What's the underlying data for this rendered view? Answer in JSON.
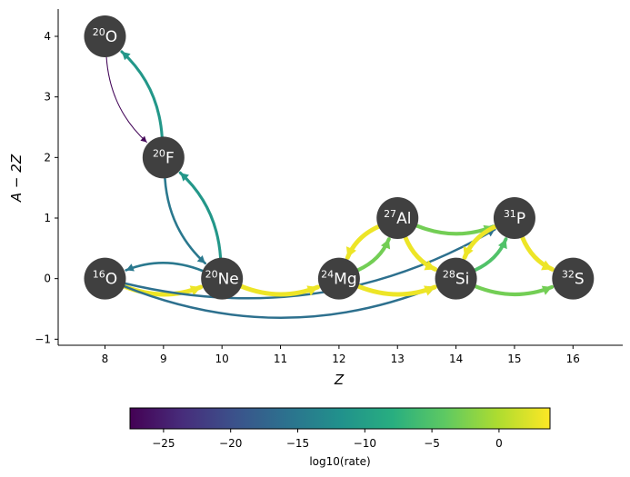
{
  "chart_data": {
    "type": "network",
    "xlabel": "Z",
    "ylabel": "A − 2Z",
    "xlim": [
      7.2,
      16.85
    ],
    "ylim": [
      -1.1,
      4.45
    ],
    "xticks": [
      "8",
      "9",
      "10",
      "11",
      "12",
      "13",
      "14",
      "15",
      "16"
    ],
    "yticks": [
      "−1",
      "0",
      "1",
      "2",
      "3",
      "4"
    ],
    "grid": false,
    "nodes": [
      {
        "id": "O20",
        "mass": "20",
        "element": "O",
        "x": 8,
        "y": 4
      },
      {
        "id": "F20",
        "mass": "20",
        "element": "F",
        "x": 9,
        "y": 2
      },
      {
        "id": "O16",
        "mass": "16",
        "element": "O",
        "x": 8,
        "y": 0
      },
      {
        "id": "Ne20",
        "mass": "20",
        "element": "Ne",
        "x": 10,
        "y": 0
      },
      {
        "id": "Mg24",
        "mass": "24",
        "element": "Mg",
        "x": 12,
        "y": 0
      },
      {
        "id": "Al27",
        "mass": "27",
        "element": "Al",
        "x": 13,
        "y": 1
      },
      {
        "id": "Si28",
        "mass": "28",
        "element": "Si",
        "x": 14,
        "y": 0
      },
      {
        "id": "P31",
        "mass": "31",
        "element": "P",
        "x": 15,
        "y": 1
      },
      {
        "id": "S32",
        "mass": "32",
        "element": "S",
        "x": 16,
        "y": 0
      }
    ],
    "links": [
      {
        "from": "O20",
        "to": "F20",
        "log10_rate": -27
      },
      {
        "from": "F20",
        "to": "O20",
        "log10_rate": -11
      },
      {
        "from": "F20",
        "to": "Ne20",
        "log10_rate": -15
      },
      {
        "from": "Ne20",
        "to": "F20",
        "log10_rate": -11
      },
      {
        "from": "Ne20",
        "to": "O16",
        "log10_rate": -15
      },
      {
        "from": "O16",
        "to": "Ne20",
        "log10_rate": 3
      },
      {
        "from": "O16",
        "to": "Si28",
        "log10_rate": -16
      },
      {
        "from": "O16",
        "to": "P31",
        "log10_rate": -16
      },
      {
        "from": "Ne20",
        "to": "Mg24",
        "log10_rate": 3
      },
      {
        "from": "Mg24",
        "to": "Al27",
        "log10_rate": -3
      },
      {
        "from": "Al27",
        "to": "Mg24",
        "log10_rate": 3
      },
      {
        "from": "Mg24",
        "to": "Si28",
        "log10_rate": 3
      },
      {
        "from": "Al27",
        "to": "P31",
        "log10_rate": -3
      },
      {
        "from": "Al27",
        "to": "Si28",
        "log10_rate": 3
      },
      {
        "from": "Si28",
        "to": "P31",
        "log10_rate": -5
      },
      {
        "from": "P31",
        "to": "Si28",
        "log10_rate": 3
      },
      {
        "from": "P31",
        "to": "S32",
        "log10_rate": 3
      },
      {
        "from": "Si28",
        "to": "S32",
        "log10_rate": -3
      }
    ],
    "colorbar": {
      "label": "log10(rate)",
      "colormap": "viridis",
      "range": [
        -27.5,
        3.8
      ],
      "ticks": [
        "−25",
        "−20",
        "−15",
        "−10",
        "−5",
        "0"
      ],
      "tick_values": [
        -25,
        -20,
        -15,
        -10,
        -5,
        0
      ]
    },
    "node_color": "#404040",
    "node_text_color": "#ffffff"
  }
}
